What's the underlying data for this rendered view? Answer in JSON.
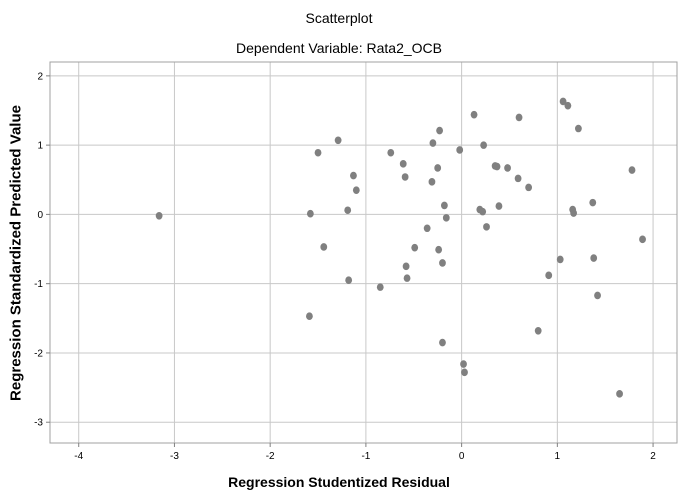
{
  "chart_data": {
    "type": "scatter",
    "title": "Scatterplot",
    "subtitle": "Dependent Variable: Rata2_OCB",
    "xlabel": "Regression Studentized Residual",
    "ylabel": "Regression Standardized Predicted Value",
    "xlim": [
      -4.3,
      2.25
    ],
    "ylim": [
      -3.3,
      2.2
    ],
    "xticks": [
      "-4",
      "-3",
      "-2",
      "-1",
      "0",
      "1",
      "2"
    ],
    "yticks": [
      "2",
      "1",
      "0",
      "-1",
      "-2",
      "-3"
    ],
    "xtick_values": [
      -4,
      -3,
      -2,
      -1,
      0,
      1,
      2
    ],
    "ytick_values": [
      2,
      1,
      0,
      -1,
      -2,
      -3
    ],
    "grid": true,
    "point_color": "#808080",
    "grid_color": "#c8c8c8",
    "points": [
      {
        "x": -3.16,
        "y": -0.02
      },
      {
        "x": -1.58,
        "y": 0.01
      },
      {
        "x": -1.59,
        "y": -1.47
      },
      {
        "x": -1.5,
        "y": 0.89
      },
      {
        "x": -1.44,
        "y": -0.47
      },
      {
        "x": -1.29,
        "y": 1.07
      },
      {
        "x": -1.19,
        "y": 0.06
      },
      {
        "x": -1.18,
        "y": -0.95
      },
      {
        "x": -1.13,
        "y": 0.56
      },
      {
        "x": -1.1,
        "y": 0.35
      },
      {
        "x": -0.85,
        "y": -1.05
      },
      {
        "x": -0.74,
        "y": 0.89
      },
      {
        "x": -0.61,
        "y": 0.73
      },
      {
        "x": -0.59,
        "y": 0.54
      },
      {
        "x": -0.58,
        "y": -0.75
      },
      {
        "x": -0.57,
        "y": -0.92
      },
      {
        "x": -0.49,
        "y": -0.48
      },
      {
        "x": -0.36,
        "y": -0.2
      },
      {
        "x": -0.31,
        "y": 0.47
      },
      {
        "x": -0.3,
        "y": 1.03
      },
      {
        "x": -0.25,
        "y": 0.67
      },
      {
        "x": -0.24,
        "y": -0.51
      },
      {
        "x": -0.23,
        "y": 1.21
      },
      {
        "x": -0.2,
        "y": -1.85
      },
      {
        "x": -0.2,
        "y": -0.7
      },
      {
        "x": -0.18,
        "y": 0.13
      },
      {
        "x": -0.16,
        "y": -0.05
      },
      {
        "x": -0.02,
        "y": 0.93
      },
      {
        "x": 0.02,
        "y": -2.16
      },
      {
        "x": 0.03,
        "y": -2.28
      },
      {
        "x": 0.13,
        "y": 1.44
      },
      {
        "x": 0.19,
        "y": 0.07
      },
      {
        "x": 0.22,
        "y": 0.04
      },
      {
        "x": 0.23,
        "y": 1.0
      },
      {
        "x": 0.26,
        "y": -0.18
      },
      {
        "x": 0.35,
        "y": 0.7
      },
      {
        "x": 0.37,
        "y": 0.69
      },
      {
        "x": 0.39,
        "y": 0.12
      },
      {
        "x": 0.48,
        "y": 0.67
      },
      {
        "x": 0.59,
        "y": 0.52
      },
      {
        "x": 0.6,
        "y": 1.4
      },
      {
        "x": 0.7,
        "y": 0.39
      },
      {
        "x": 0.8,
        "y": -1.68
      },
      {
        "x": 0.91,
        "y": -0.88
      },
      {
        "x": 1.03,
        "y": -0.65
      },
      {
        "x": 1.06,
        "y": 1.63
      },
      {
        "x": 1.11,
        "y": 1.57
      },
      {
        "x": 1.16,
        "y": 0.07
      },
      {
        "x": 1.17,
        "y": 0.02
      },
      {
        "x": 1.22,
        "y": 1.24
      },
      {
        "x": 1.37,
        "y": 0.17
      },
      {
        "x": 1.38,
        "y": -0.63
      },
      {
        "x": 1.42,
        "y": -1.17
      },
      {
        "x": 1.65,
        "y": -2.59
      },
      {
        "x": 1.78,
        "y": 0.64
      },
      {
        "x": 1.89,
        "y": -0.36
      }
    ]
  }
}
